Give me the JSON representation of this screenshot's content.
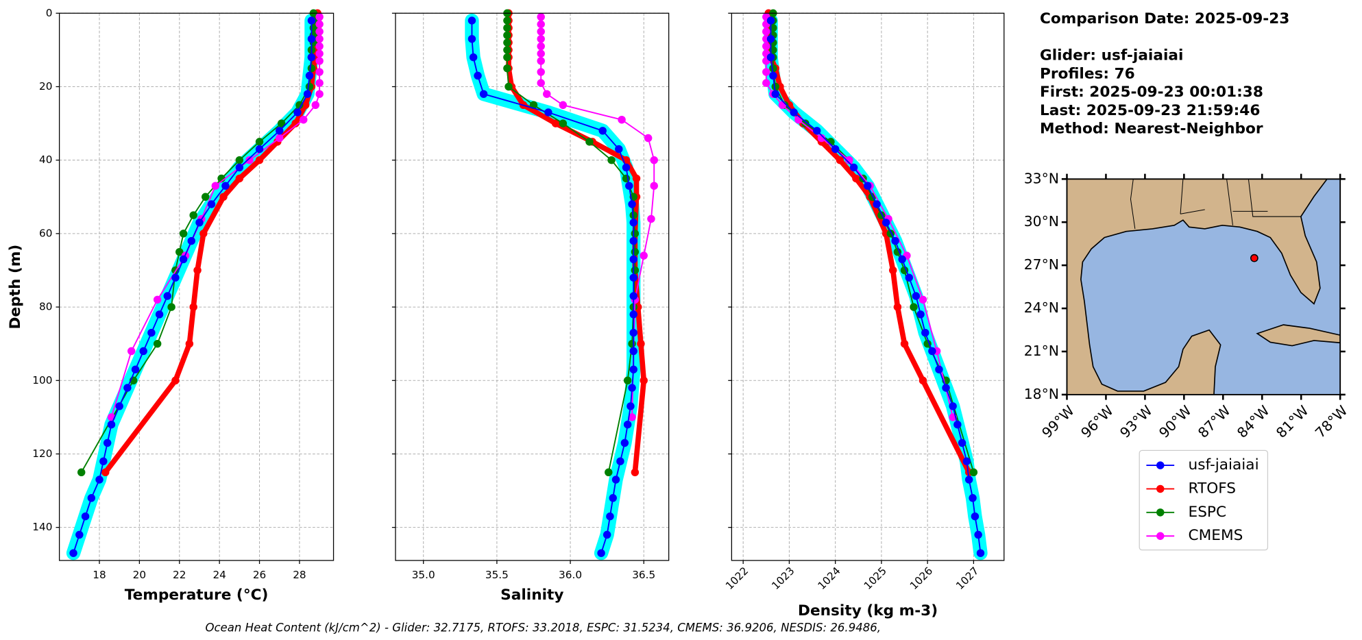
{
  "chart_data": [
    {
      "type": "line",
      "xlabel": "Temperature (°C)",
      "ylabel": "Depth (m)",
      "xlim": [
        16.0,
        29.7
      ],
      "ylim": [
        0,
        149
      ],
      "y_inverted": true,
      "grid": true,
      "show_ytick_labels": true,
      "xticks": [
        18,
        20,
        22,
        24,
        26,
        28
      ],
      "yticks": [
        0,
        20,
        40,
        60,
        80,
        100,
        120,
        140
      ],
      "glider_band_color": "#00ffff",
      "series": [
        {
          "name": "usf-jaiaiai",
          "color": "#0000ff",
          "linewidth": 1.5,
          "marker_size": 4.5,
          "y": [
            2,
            7,
            12,
            17,
            22,
            27,
            32,
            37,
            42,
            47,
            52,
            57,
            62,
            67,
            72,
            77,
            82,
            87,
            92,
            97,
            102,
            107,
            112,
            117,
            122,
            127,
            132,
            137,
            142,
            147
          ],
          "x": [
            28.6,
            28.6,
            28.6,
            28.5,
            28.4,
            27.9,
            27.0,
            26.0,
            25.0,
            24.3,
            23.6,
            23.0,
            22.6,
            22.2,
            21.8,
            21.4,
            21.0,
            20.6,
            20.2,
            19.8,
            19.4,
            19.0,
            18.6,
            18.4,
            18.2,
            18.0,
            17.6,
            17.3,
            17.0,
            16.7
          ]
        },
        {
          "name": "RTOFS",
          "color": "#ff0000",
          "linewidth": 6,
          "marker_size": 4.5,
          "y": [
            0,
            2,
            4,
            6,
            8,
            10,
            12,
            15,
            20,
            25,
            30,
            35,
            40,
            45,
            50,
            60,
            70,
            80,
            90,
            100,
            125
          ],
          "x": [
            28.9,
            28.9,
            28.9,
            28.9,
            28.8,
            28.8,
            28.8,
            28.7,
            28.6,
            28.3,
            27.8,
            26.9,
            26.0,
            25.0,
            24.2,
            23.2,
            22.9,
            22.7,
            22.5,
            21.8,
            18.3
          ]
        },
        {
          "name": "ESPC",
          "color": "#008000",
          "linewidth": 1.5,
          "marker_size": 4.5,
          "y": [
            0,
            2,
            4,
            6,
            8,
            10,
            12,
            15,
            20,
            25,
            30,
            35,
            40,
            45,
            50,
            55,
            60,
            65,
            70,
            80,
            90,
            100,
            125
          ],
          "x": [
            28.7,
            28.7,
            28.7,
            28.7,
            28.7,
            28.6,
            28.6,
            28.6,
            28.5,
            28.0,
            27.1,
            26.0,
            25.0,
            24.1,
            23.3,
            22.7,
            22.2,
            22.0,
            21.8,
            21.6,
            20.9,
            19.7,
            17.1
          ]
        },
        {
          "name": "CMEMS",
          "color": "#ff00ff",
          "linewidth": 1.5,
          "marker_size": 4.5,
          "y": [
            1,
            3,
            5,
            7,
            9,
            11,
            13,
            16,
            19,
            22,
            25,
            29,
            34,
            40,
            47,
            56,
            66,
            78,
            92,
            110
          ],
          "x": [
            29.0,
            29.0,
            29.0,
            29.0,
            29.0,
            29.0,
            29.0,
            29.0,
            29.0,
            29.0,
            28.8,
            28.2,
            27.0,
            25.5,
            23.8,
            23.1,
            22.3,
            20.9,
            19.6,
            18.6
          ]
        }
      ]
    },
    {
      "type": "line",
      "xlabel": "Salinity",
      "xlim": [
        34.81,
        36.67
      ],
      "ylim": [
        0,
        149
      ],
      "y_inverted": true,
      "grid": true,
      "show_ytick_labels": false,
      "xticks": [
        {
          "value": 35,
          "label": "35.0"
        },
        35.5,
        {
          "value": 36,
          "label": "36.0"
        },
        36.5
      ],
      "yticks": [
        0,
        20,
        40,
        60,
        80,
        100,
        120,
        140
      ],
      "glider_band_color": "#00ffff",
      "series": [
        {
          "name": "usf-jaiaiai",
          "color": "#0000ff",
          "linewidth": 1.5,
          "marker_size": 4.5,
          "y": [
            2,
            7,
            12,
            17,
            22,
            27,
            32,
            37,
            42,
            47,
            52,
            57,
            62,
            67,
            72,
            77,
            82,
            87,
            92,
            97,
            102,
            107,
            112,
            117,
            122,
            127,
            132,
            137,
            142,
            147
          ],
          "x": [
            35.33,
            35.33,
            35.34,
            35.37,
            35.41,
            35.85,
            36.22,
            36.33,
            36.38,
            36.4,
            36.42,
            36.43,
            36.43,
            36.43,
            36.43,
            36.43,
            36.43,
            36.43,
            36.43,
            36.43,
            36.42,
            36.41,
            36.39,
            36.37,
            36.34,
            36.31,
            36.29,
            36.27,
            36.25,
            36.21
          ]
        },
        {
          "name": "RTOFS",
          "color": "#ff0000",
          "linewidth": 6,
          "marker_size": 4.5,
          "y": [
            0,
            2,
            4,
            6,
            8,
            10,
            12,
            15,
            20,
            25,
            30,
            35,
            40,
            45,
            50,
            60,
            70,
            80,
            90,
            100,
            125
          ],
          "x": [
            35.58,
            35.58,
            35.58,
            35.58,
            35.58,
            35.58,
            35.58,
            35.58,
            35.6,
            35.68,
            35.9,
            36.15,
            36.38,
            36.45,
            36.45,
            36.44,
            36.44,
            36.46,
            36.48,
            36.5,
            36.44
          ]
        },
        {
          "name": "ESPC",
          "color": "#008000",
          "linewidth": 1.5,
          "marker_size": 4.5,
          "y": [
            0,
            2,
            4,
            6,
            8,
            10,
            12,
            15,
            20,
            25,
            30,
            35,
            40,
            45,
            50,
            55,
            60,
            65,
            70,
            80,
            90,
            100,
            125
          ],
          "x": [
            35.57,
            35.57,
            35.57,
            35.57,
            35.57,
            35.57,
            35.57,
            35.57,
            35.58,
            35.75,
            35.95,
            36.13,
            36.28,
            36.38,
            36.43,
            36.43,
            36.44,
            36.44,
            36.44,
            36.43,
            36.42,
            36.39,
            36.26
          ]
        },
        {
          "name": "CMEMS",
          "color": "#ff00ff",
          "linewidth": 1.5,
          "marker_size": 4.5,
          "y": [
            1,
            3,
            5,
            7,
            9,
            11,
            13,
            16,
            19,
            22,
            25,
            29,
            34,
            40,
            47,
            56,
            66,
            78,
            92,
            110
          ],
          "x": [
            35.8,
            35.8,
            35.8,
            35.8,
            35.8,
            35.8,
            35.8,
            35.8,
            35.8,
            35.84,
            35.95,
            36.35,
            36.53,
            36.57,
            36.57,
            36.55,
            36.5,
            36.44,
            36.43,
            36.42
          ]
        }
      ]
    },
    {
      "type": "line",
      "xlabel": "Density (kg m-3)",
      "xlim": [
        1021.75,
        1027.66
      ],
      "ylim": [
        0,
        149
      ],
      "y_inverted": true,
      "grid": true,
      "show_ytick_labels": false,
      "xtick_rotation": 45,
      "xticks": [
        1022,
        1023,
        1024,
        1025,
        1026,
        1027
      ],
      "yticks": [
        0,
        20,
        40,
        60,
        80,
        100,
        120,
        140
      ],
      "glider_band_color": "#00ffff",
      "series": [
        {
          "name": "usf-jaiaiai",
          "color": "#0000ff",
          "linewidth": 1.5,
          "marker_size": 4.5,
          "y": [
            2,
            7,
            12,
            17,
            22,
            27,
            32,
            37,
            42,
            47,
            52,
            57,
            62,
            67,
            72,
            77,
            82,
            87,
            92,
            97,
            102,
            107,
            112,
            117,
            122,
            127,
            132,
            137,
            142,
            147
          ],
          "x": [
            1022.6,
            1022.6,
            1022.6,
            1022.65,
            1022.7,
            1023.1,
            1023.6,
            1024.0,
            1024.4,
            1024.7,
            1024.9,
            1025.1,
            1025.3,
            1025.45,
            1025.6,
            1025.75,
            1025.85,
            1025.95,
            1026.1,
            1026.25,
            1026.4,
            1026.55,
            1026.65,
            1026.75,
            1026.85,
            1026.9,
            1026.98,
            1027.03,
            1027.1,
            1027.15
          ]
        },
        {
          "name": "RTOFS",
          "color": "#ff0000",
          "linewidth": 6,
          "marker_size": 4.5,
          "y": [
            0,
            2,
            4,
            6,
            8,
            10,
            12,
            15,
            20,
            25,
            30,
            35,
            40,
            45,
            50,
            60,
            70,
            80,
            90,
            100,
            125
          ],
          "x": [
            1022.55,
            1022.55,
            1022.55,
            1022.55,
            1022.6,
            1022.6,
            1022.6,
            1022.7,
            1022.8,
            1023.0,
            1023.3,
            1023.7,
            1024.1,
            1024.45,
            1024.75,
            1025.1,
            1025.25,
            1025.35,
            1025.5,
            1025.9,
            1026.9
          ]
        },
        {
          "name": "ESPC",
          "color": "#008000",
          "linewidth": 1.5,
          "marker_size": 4.5,
          "y": [
            0,
            2,
            4,
            6,
            8,
            10,
            12,
            15,
            20,
            25,
            30,
            35,
            40,
            45,
            50,
            55,
            60,
            65,
            70,
            80,
            90,
            100,
            125
          ],
          "x": [
            1022.65,
            1022.65,
            1022.65,
            1022.65,
            1022.65,
            1022.65,
            1022.65,
            1022.65,
            1022.7,
            1022.9,
            1023.35,
            1023.9,
            1024.3,
            1024.6,
            1024.8,
            1025.0,
            1025.2,
            1025.35,
            1025.5,
            1025.7,
            1026.0,
            1026.4,
            1027.0
          ]
        },
        {
          "name": "CMEMS",
          "color": "#ff00ff",
          "linewidth": 1.5,
          "marker_size": 4.5,
          "y": [
            1,
            3,
            5,
            7,
            9,
            11,
            13,
            16,
            19,
            22,
            25,
            29,
            34,
            40,
            47,
            56,
            66,
            78,
            92,
            110
          ],
          "x": [
            1022.5,
            1022.5,
            1022.5,
            1022.5,
            1022.5,
            1022.5,
            1022.5,
            1022.5,
            1022.5,
            1022.65,
            1022.85,
            1023.2,
            1023.7,
            1024.3,
            1024.75,
            1025.15,
            1025.55,
            1025.9,
            1026.2,
            1026.55
          ]
        }
      ]
    }
  ],
  "info": [
    "Comparison Date: 2025-09-23",
    "Glider: usf-jaiaiai",
    "Profiles: 76",
    "First: 2025-09-23 00:01:38",
    "Last: 2025-09-23 21:59:46",
    "Method: Nearest-Neighbor"
  ],
  "map": {
    "lonlim": [
      -99,
      -78
    ],
    "latlim": [
      18,
      33
    ],
    "lonticks": [
      {
        "value": -99,
        "label": "99°W"
      },
      {
        "value": -96,
        "label": "96°W"
      },
      {
        "value": -93,
        "label": "93°W"
      },
      {
        "value": -90,
        "label": "90°W"
      },
      {
        "value": -87,
        "label": "87°W"
      },
      {
        "value": -84,
        "label": "84°W"
      },
      {
        "value": -81,
        "label": "81°W"
      },
      {
        "value": -78,
        "label": "78°W"
      }
    ],
    "latticks": [
      {
        "value": 18,
        "label": "18°N"
      },
      {
        "value": 21,
        "label": "21°N"
      },
      {
        "value": 24,
        "label": "24°N"
      },
      {
        "value": 27,
        "label": "27°N"
      },
      {
        "value": 30,
        "label": "30°N"
      },
      {
        "value": 33,
        "label": "33°N"
      }
    ],
    "glider": {
      "lon": -84.6,
      "lat": 27.5,
      "color": "#ff0000"
    }
  },
  "footer": "Ocean Heat Content (kJ/cm^2) - Glider: 32.7175,  RTOFS: 33.2018,  ESPC: 31.5234,  CMEMS: 36.9206,  NESDIS: 26.9486,"
}
